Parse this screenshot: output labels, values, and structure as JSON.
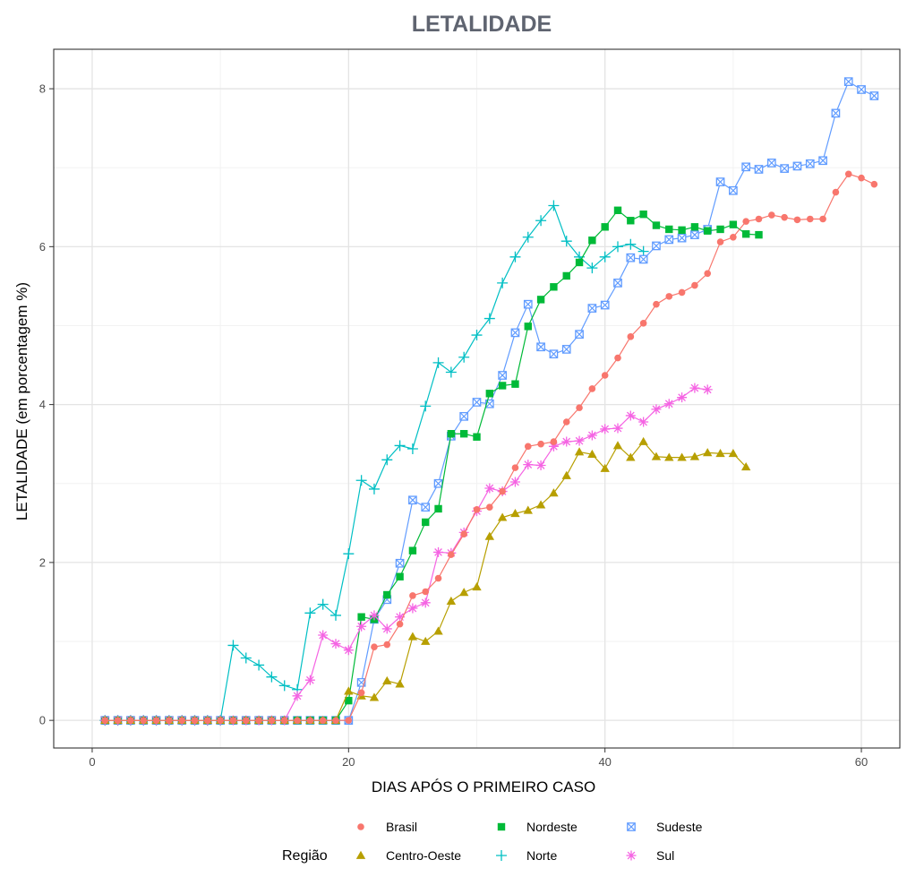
{
  "chart_data": {
    "type": "line",
    "title": "LETALIDADE",
    "xlabel": "DIAS APÓS O PRIMEIRO CASO",
    "ylabel": "LETALIDADE (em porcentagem %)",
    "xlim": [
      -3,
      63
    ],
    "ylim": [
      -0.35,
      8.5
    ],
    "x_ticks": [
      0,
      20,
      40,
      60
    ],
    "y_ticks": [
      0,
      2,
      4,
      6,
      8
    ],
    "x_tick_labels": [
      "0",
      "20",
      "40",
      "60"
    ],
    "y_tick_labels": [
      "0",
      "2",
      "4",
      "6",
      "8"
    ],
    "grid": true,
    "legend": {
      "title": "Região",
      "position": "bottom"
    },
    "series": [
      {
        "name": "Brasil",
        "color": "#F8766D",
        "marker": "circle",
        "x": [
          1,
          2,
          3,
          4,
          5,
          6,
          7,
          8,
          9,
          10,
          11,
          12,
          13,
          14,
          15,
          16,
          17,
          18,
          19,
          20,
          21,
          22,
          23,
          24,
          25,
          26,
          27,
          28,
          29,
          30,
          31,
          32,
          33,
          34,
          35,
          36,
          37,
          38,
          39,
          40,
          41,
          42,
          43,
          44,
          45,
          46,
          47,
          48,
          49,
          50,
          51,
          52,
          53,
          54,
          55,
          56,
          57,
          58,
          59,
          60,
          61
        ],
        "y": [
          0,
          0,
          0,
          0,
          0,
          0,
          0,
          0,
          0,
          0,
          0,
          0,
          0,
          0,
          0,
          0,
          0,
          0,
          0,
          0,
          0.35,
          0.93,
          0.96,
          1.22,
          1.58,
          1.63,
          1.8,
          2.1,
          2.36,
          2.67,
          2.7,
          2.9,
          3.2,
          3.47,
          3.5,
          3.53,
          3.78,
          3.96,
          4.2,
          4.37,
          4.59,
          4.86,
          5.03,
          5.27,
          5.37,
          5.42,
          5.51,
          5.66,
          6.06,
          6.12,
          6.32,
          6.35,
          6.4,
          6.37,
          6.34,
          6.35,
          6.35,
          6.69,
          6.92,
          6.87,
          6.79
        ]
      },
      {
        "name": "Centro-Oeste",
        "color": "#B79F00",
        "marker": "triangle",
        "x": [
          1,
          2,
          3,
          4,
          5,
          6,
          7,
          8,
          9,
          10,
          11,
          12,
          13,
          14,
          15,
          16,
          17,
          18,
          19,
          20,
          21,
          22,
          23,
          24,
          25,
          26,
          27,
          28,
          29,
          30,
          31,
          32,
          33,
          34,
          35,
          36,
          37,
          38,
          39,
          40,
          41,
          42,
          43,
          44,
          45,
          46,
          47,
          48,
          49,
          50,
          51
        ],
        "y": [
          0,
          0,
          0,
          0,
          0,
          0,
          0,
          0,
          0,
          0,
          0,
          0,
          0,
          0,
          0,
          0,
          0,
          0,
          0,
          0.37,
          0.31,
          0.29,
          0.5,
          0.46,
          1.06,
          1.0,
          1.13,
          1.51,
          1.62,
          1.69,
          2.33,
          2.57,
          2.62,
          2.66,
          2.73,
          2.88,
          3.1,
          3.4,
          3.37,
          3.19,
          3.48,
          3.33,
          3.53,
          3.34,
          3.33,
          3.33,
          3.34,
          3.39,
          3.38,
          3.38,
          3.21
        ]
      },
      {
        "name": "Nordeste",
        "color": "#00BA38",
        "marker": "square",
        "x": [
          1,
          2,
          3,
          4,
          5,
          6,
          7,
          8,
          9,
          10,
          11,
          12,
          13,
          14,
          15,
          16,
          17,
          18,
          19,
          20,
          21,
          22,
          23,
          24,
          25,
          26,
          27,
          28,
          29,
          30,
          31,
          32,
          33,
          34,
          35,
          36,
          37,
          38,
          39,
          40,
          41,
          42,
          43,
          44,
          45,
          46,
          47,
          48,
          49,
          50,
          51,
          52
        ],
        "y": [
          0,
          0,
          0,
          0,
          0,
          0,
          0,
          0,
          0,
          0,
          0,
          0,
          0,
          0,
          0,
          0,
          0,
          0,
          0,
          0.25,
          1.31,
          1.28,
          1.59,
          1.82,
          2.15,
          2.51,
          2.68,
          3.63,
          3.63,
          3.59,
          4.14,
          4.24,
          4.26,
          4.99,
          5.33,
          5.49,
          5.63,
          5.8,
          6.08,
          6.25,
          6.46,
          6.33,
          6.41,
          6.27,
          6.22,
          6.21,
          6.25,
          6.2,
          6.22,
          6.28,
          6.16,
          6.15
        ]
      },
      {
        "name": "Norte",
        "color": "#00BFC4",
        "marker": "plus",
        "x": [
          1,
          2,
          3,
          4,
          5,
          6,
          7,
          8,
          9,
          10,
          11,
          12,
          13,
          14,
          15,
          16,
          17,
          18,
          19,
          20,
          21,
          22,
          23,
          24,
          25,
          26,
          27,
          28,
          29,
          30,
          31,
          32,
          33,
          34,
          35,
          36,
          37,
          38,
          39,
          40,
          41,
          42,
          43
        ],
        "y": [
          0,
          0,
          0,
          0,
          0,
          0,
          0,
          0,
          0,
          0,
          0.95,
          0.79,
          0.7,
          0.55,
          0.44,
          0.39,
          1.36,
          1.47,
          1.33,
          2.11,
          3.04,
          2.93,
          3.3,
          3.48,
          3.44,
          3.98,
          4.53,
          4.41,
          4.6,
          4.88,
          5.09,
          5.54,
          5.87,
          6.12,
          6.33,
          6.52,
          6.07,
          5.87,
          5.73,
          5.87,
          6.0,
          6.03,
          5.94
        ]
      },
      {
        "name": "Sudeste",
        "color": "#619CFF",
        "marker": "square-x",
        "x": [
          1,
          2,
          3,
          4,
          5,
          6,
          7,
          8,
          9,
          10,
          11,
          12,
          13,
          14,
          15,
          16,
          17,
          18,
          19,
          20,
          21,
          22,
          23,
          24,
          25,
          26,
          27,
          28,
          29,
          30,
          31,
          32,
          33,
          34,
          35,
          36,
          37,
          38,
          39,
          40,
          41,
          42,
          43,
          44,
          45,
          46,
          47,
          48,
          49,
          50,
          51,
          52,
          53,
          54,
          55,
          56,
          57,
          58,
          59,
          60,
          61
        ],
        "y": [
          0,
          0,
          0,
          0,
          0,
          0,
          0,
          0,
          0,
          0,
          0,
          0,
          0,
          0,
          0,
          0,
          0,
          0,
          0,
          0,
          0.48,
          1.28,
          1.53,
          1.99,
          2.79,
          2.7,
          3.0,
          3.6,
          3.85,
          4.03,
          4.01,
          4.37,
          4.91,
          5.27,
          4.73,
          4.64,
          4.7,
          4.89,
          5.22,
          5.26,
          5.54,
          5.86,
          5.84,
          6.01,
          6.09,
          6.11,
          6.15,
          6.22,
          6.82,
          6.71,
          7.01,
          6.98,
          7.06,
          6.99,
          7.02,
          7.05,
          7.09,
          7.69,
          8.09,
          7.99,
          7.91
        ]
      },
      {
        "name": "Sul",
        "color": "#F564E3",
        "marker": "asterisk",
        "x": [
          1,
          2,
          3,
          4,
          5,
          6,
          7,
          8,
          9,
          10,
          11,
          12,
          13,
          14,
          15,
          16,
          17,
          18,
          19,
          20,
          21,
          22,
          23,
          24,
          25,
          26,
          27,
          28,
          29,
          30,
          31,
          32,
          33,
          34,
          35,
          36,
          37,
          38,
          39,
          40,
          41,
          42,
          43,
          44,
          45,
          46,
          47,
          48
        ],
        "y": [
          0,
          0,
          0,
          0,
          0,
          0,
          0,
          0,
          0,
          0,
          0,
          0,
          0,
          0,
          0,
          0.31,
          0.51,
          1.08,
          0.97,
          0.89,
          1.19,
          1.33,
          1.16,
          1.31,
          1.42,
          1.49,
          2.13,
          2.12,
          2.38,
          2.65,
          2.94,
          2.9,
          3.02,
          3.24,
          3.23,
          3.47,
          3.53,
          3.54,
          3.61,
          3.69,
          3.7,
          3.86,
          3.78,
          3.94,
          4.01,
          4.09,
          4.21,
          4.19
        ]
      }
    ]
  }
}
